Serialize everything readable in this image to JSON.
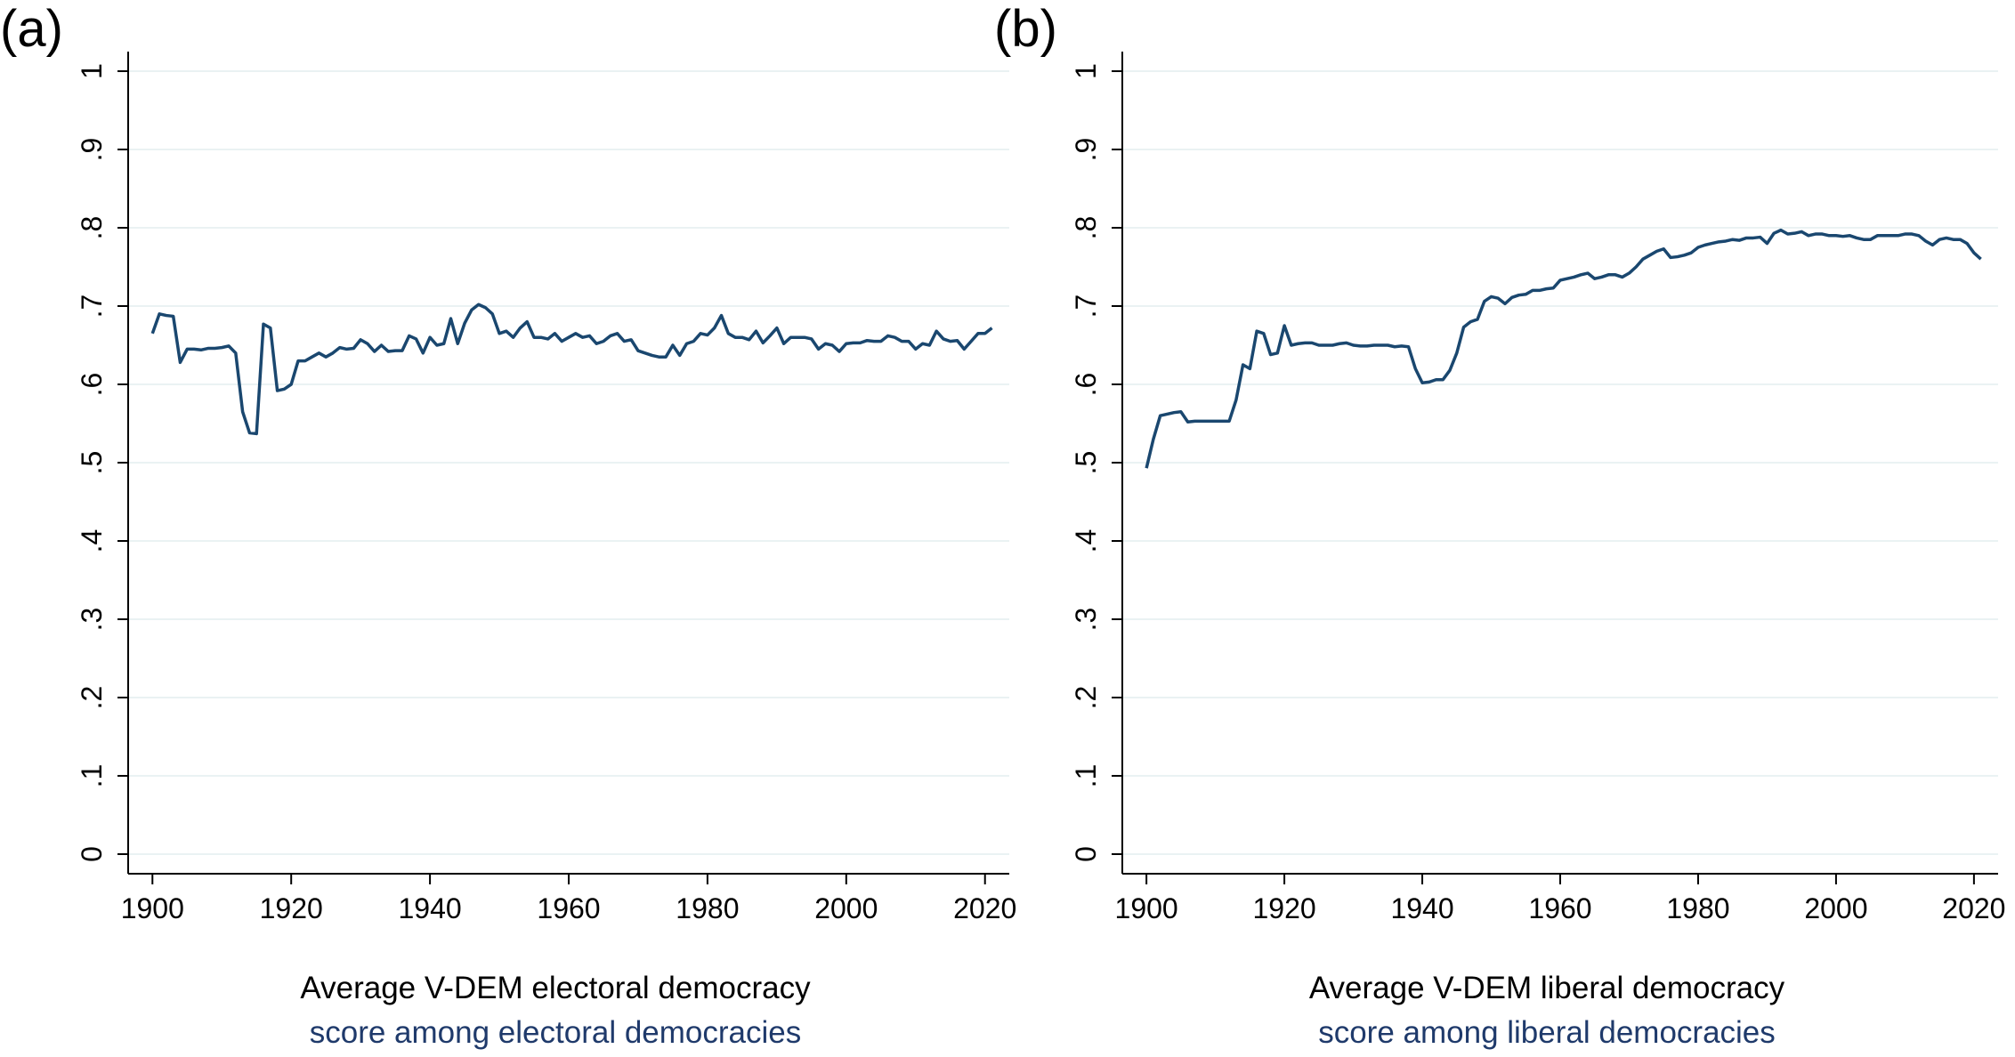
{
  "chart_data": [
    {
      "type": "line",
      "label": "(a)",
      "xlabel": "Average V-DEM electoral democracy",
      "xlabel_sub": "score among electoral democracies",
      "xlim": [
        1896.5,
        2023.5
      ],
      "xticks": [
        1900,
        1920,
        1940,
        1960,
        1980,
        2000,
        2020
      ],
      "ylim": [
        -0.025,
        1.025
      ],
      "yticks": [
        0,
        {
          "value": 0.1,
          "label": ".1"
        },
        {
          "value": 0.2,
          "label": ".2"
        },
        {
          "value": 0.3,
          "label": ".3"
        },
        {
          "value": 0.4,
          "label": ".4"
        },
        {
          "value": 0.5,
          "label": ".5"
        },
        {
          "value": 0.6,
          "label": ".6"
        },
        {
          "value": 0.7,
          "label": ".7"
        },
        {
          "value": 0.8,
          "label": ".8"
        },
        {
          "value": 0.9,
          "label": ".9"
        },
        1
      ],
      "grid": true,
      "color": "#1a476f",
      "x": [
        1900,
        1901,
        1902,
        1903,
        1904,
        1905,
        1906,
        1907,
        1908,
        1909,
        1910,
        1911,
        1912,
        1913,
        1914,
        1915,
        1916,
        1917,
        1918,
        1919,
        1920,
        1921,
        1922,
        1923,
        1924,
        1925,
        1926,
        1927,
        1928,
        1929,
        1930,
        1931,
        1932,
        1933,
        1934,
        1935,
        1936,
        1937,
        1938,
        1939,
        1940,
        1941,
        1942,
        1943,
        1944,
        1945,
        1946,
        1947,
        1948,
        1949,
        1950,
        1951,
        1952,
        1953,
        1954,
        1955,
        1956,
        1957,
        1958,
        1959,
        1960,
        1961,
        1962,
        1963,
        1964,
        1965,
        1966,
        1967,
        1968,
        1969,
        1970,
        1971,
        1972,
        1973,
        1974,
        1975,
        1976,
        1977,
        1978,
        1979,
        1980,
        1981,
        1982,
        1983,
        1984,
        1985,
        1986,
        1987,
        1988,
        1989,
        1990,
        1991,
        1992,
        1993,
        1994,
        1995,
        1996,
        1997,
        1998,
        1999,
        2000,
        2001,
        2002,
        2003,
        2004,
        2005,
        2006,
        2007,
        2008,
        2009,
        2010,
        2011,
        2012,
        2013,
        2014,
        2015,
        2016,
        2017,
        2018,
        2019,
        2020,
        2021
      ],
      "values": [
        0.665,
        0.69,
        0.688,
        0.687,
        0.628,
        0.645,
        0.645,
        0.644,
        0.646,
        0.646,
        0.647,
        0.649,
        0.64,
        0.565,
        0.538,
        0.537,
        0.677,
        0.672,
        0.592,
        0.594,
        0.6,
        0.63,
        0.63,
        0.635,
        0.64,
        0.635,
        0.64,
        0.647,
        0.645,
        0.646,
        0.657,
        0.652,
        0.642,
        0.65,
        0.642,
        0.643,
        0.643,
        0.662,
        0.658,
        0.64,
        0.66,
        0.65,
        0.652,
        0.684,
        0.652,
        0.678,
        0.695,
        0.702,
        0.698,
        0.69,
        0.665,
        0.668,
        0.66,
        0.672,
        0.68,
        0.66,
        0.66,
        0.658,
        0.665,
        0.655,
        0.66,
        0.665,
        0.66,
        0.662,
        0.652,
        0.655,
        0.662,
        0.665,
        0.655,
        0.657,
        0.643,
        0.64,
        0.637,
        0.635,
        0.635,
        0.65,
        0.637,
        0.652,
        0.655,
        0.665,
        0.663,
        0.672,
        0.688,
        0.665,
        0.66,
        0.66,
        0.657,
        0.668,
        0.653,
        0.662,
        0.672,
        0.652,
        0.66,
        0.66,
        0.66,
        0.658,
        0.645,
        0.652,
        0.65,
        0.642,
        0.652,
        0.653,
        0.653,
        0.656,
        0.655,
        0.655,
        0.662,
        0.66,
        0.655,
        0.655,
        0.645,
        0.652,
        0.65,
        0.668,
        0.658,
        0.655,
        0.656,
        0.645,
        0.655,
        0.665,
        0.665,
        0.672
      ]
    },
    {
      "type": "line",
      "label": "(b)",
      "xlabel": "Average V-DEM liberal democracy",
      "xlabel_sub": "score among liberal democracies",
      "xlim": [
        1896.5,
        2023.5
      ],
      "xticks": [
        1900,
        1920,
        1940,
        1960,
        1980,
        2000,
        2020
      ],
      "ylim": [
        -0.025,
        1.025
      ],
      "yticks": [
        0,
        {
          "value": 0.1,
          "label": ".1"
        },
        {
          "value": 0.2,
          "label": ".2"
        },
        {
          "value": 0.3,
          "label": ".3"
        },
        {
          "value": 0.4,
          "label": ".4"
        },
        {
          "value": 0.5,
          "label": ".5"
        },
        {
          "value": 0.6,
          "label": ".6"
        },
        {
          "value": 0.7,
          "label": ".7"
        },
        {
          "value": 0.8,
          "label": ".8"
        },
        {
          "value": 0.9,
          "label": ".9"
        },
        1
      ],
      "grid": true,
      "color": "#1a476f",
      "x": [
        1900,
        1901,
        1902,
        1903,
        1904,
        1905,
        1906,
        1907,
        1908,
        1909,
        1910,
        1911,
        1912,
        1913,
        1914,
        1915,
        1916,
        1917,
        1918,
        1919,
        1920,
        1921,
        1922,
        1923,
        1924,
        1925,
        1926,
        1927,
        1928,
        1929,
        1930,
        1931,
        1932,
        1933,
        1934,
        1935,
        1936,
        1937,
        1938,
        1939,
        1940,
        1941,
        1942,
        1943,
        1944,
        1945,
        1946,
        1947,
        1948,
        1949,
        1950,
        1951,
        1952,
        1953,
        1954,
        1955,
        1956,
        1957,
        1958,
        1959,
        1960,
        1961,
        1962,
        1963,
        1964,
        1965,
        1966,
        1967,
        1968,
        1969,
        1970,
        1971,
        1972,
        1973,
        1974,
        1975,
        1976,
        1977,
        1978,
        1979,
        1980,
        1981,
        1982,
        1983,
        1984,
        1985,
        1986,
        1987,
        1988,
        1989,
        1990,
        1991,
        1992,
        1993,
        1994,
        1995,
        1996,
        1997,
        1998,
        1999,
        2000,
        2001,
        2002,
        2003,
        2004,
        2005,
        2006,
        2007,
        2008,
        2009,
        2010,
        2011,
        2012,
        2013,
        2014,
        2015,
        2016,
        2017,
        2018,
        2019,
        2020,
        2021
      ],
      "values": [
        0.493,
        0.53,
        0.56,
        0.562,
        0.564,
        0.565,
        0.552,
        0.553,
        0.553,
        0.553,
        0.553,
        0.553,
        0.553,
        0.58,
        0.625,
        0.62,
        0.668,
        0.665,
        0.638,
        0.64,
        0.675,
        0.65,
        0.652,
        0.653,
        0.653,
        0.65,
        0.65,
        0.65,
        0.652,
        0.653,
        0.65,
        0.649,
        0.649,
        0.65,
        0.65,
        0.65,
        0.648,
        0.649,
        0.648,
        0.62,
        0.602,
        0.603,
        0.606,
        0.606,
        0.618,
        0.64,
        0.673,
        0.68,
        0.683,
        0.706,
        0.712,
        0.71,
        0.703,
        0.711,
        0.714,
        0.715,
        0.72,
        0.72,
        0.722,
        0.723,
        0.733,
        0.735,
        0.737,
        0.74,
        0.742,
        0.735,
        0.737,
        0.74,
        0.74,
        0.737,
        0.742,
        0.75,
        0.76,
        0.765,
        0.77,
        0.773,
        0.762,
        0.763,
        0.765,
        0.768,
        0.775,
        0.778,
        0.78,
        0.782,
        0.783,
        0.785,
        0.784,
        0.787,
        0.787,
        0.788,
        0.78,
        0.793,
        0.797,
        0.792,
        0.793,
        0.795,
        0.79,
        0.792,
        0.792,
        0.79,
        0.79,
        0.789,
        0.79,
        0.787,
        0.785,
        0.785,
        0.79,
        0.79,
        0.79,
        0.79,
        0.792,
        0.792,
        0.79,
        0.783,
        0.778,
        0.785,
        0.787,
        0.785,
        0.785,
        0.78,
        0.768,
        0.76
      ]
    }
  ]
}
